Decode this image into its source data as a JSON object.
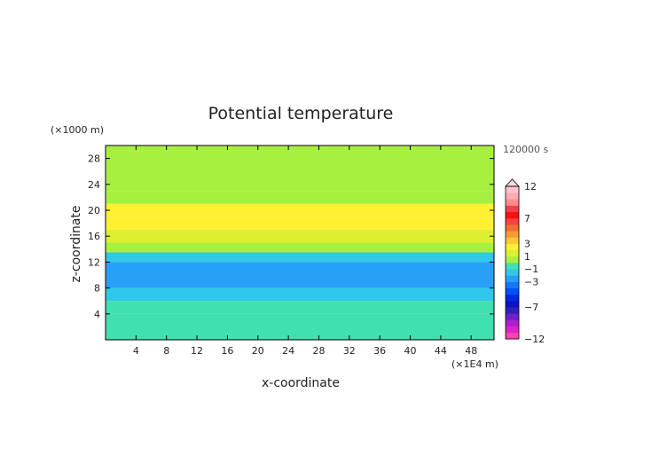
{
  "chart_data": {
    "type": "heatmap",
    "title": "Potential temperature",
    "xlabel": "x-coordinate",
    "ylabel": "z-coordinate",
    "x_unit": "(×1E4 m)",
    "y_unit": "(×1000 m)",
    "time_label": "120000 s",
    "xlim": [
      0,
      51
    ],
    "ylim": [
      0,
      30
    ],
    "x_ticks": [
      4,
      8,
      12,
      16,
      20,
      24,
      28,
      32,
      36,
      40,
      44,
      48
    ],
    "y_ticks": [
      4,
      8,
      12,
      16,
      20,
      24,
      28
    ],
    "x_tick_labels": [
      "4",
      "8",
      "12",
      "16",
      "20",
      "24",
      "28",
      "32",
      "36",
      "40",
      "44",
      "48"
    ],
    "y_tick_labels": [
      "4",
      "8",
      "12",
      "16",
      "20",
      "24",
      "28"
    ],
    "colorbar": {
      "levels": [
        -12,
        -11,
        -10,
        -9,
        -8,
        -7,
        -6,
        -5,
        -4,
        -3,
        -2,
        -1,
        0,
        1,
        2,
        3,
        4,
        5,
        6,
        7,
        8,
        9,
        10,
        11,
        12
      ],
      "labeled": [
        {
          "value": 12,
          "label": "12"
        },
        {
          "value": 7,
          "label": "7"
        },
        {
          "value": 3,
          "label": "3"
        },
        {
          "value": 1,
          "label": "1"
        },
        {
          "value": -1,
          "label": "−1"
        },
        {
          "value": -3,
          "label": "−3"
        },
        {
          "value": -7,
          "label": "−7"
        },
        {
          "value": -12,
          "label": "−12"
        }
      ],
      "colors": [
        "#ff44aa",
        "#e020c8",
        "#b020d0",
        "#7020c8",
        "#3020b8",
        "#1010c8",
        "#0028e0",
        "#0050ff",
        "#1478ff",
        "#28a0f8",
        "#30c8e8",
        "#40e0b0",
        "#a8f040",
        "#dcf030",
        "#fff030",
        "#ffc838",
        "#ff9838",
        "#f07030",
        "#ff4040",
        "#ff1010",
        "#f04050",
        "#ff8c8c",
        "#ffaab4",
        "#ffc4cc"
      ]
    },
    "bands": [
      {
        "z": [
          0,
          4
        ],
        "value": -0.2
      },
      {
        "z": [
          4,
          6
        ],
        "value": -0.8
      },
      {
        "z": [
          6,
          8
        ],
        "value": -1.4
      },
      {
        "z": [
          8,
          10
        ],
        "value": -3.0
      },
      {
        "z": [
          10,
          12
        ],
        "value": -2.6
      },
      {
        "z": [
          12,
          13.5
        ],
        "value": -2.0
      },
      {
        "z": [
          13.5,
          15
        ],
        "value": 0.2
      },
      {
        "z": [
          15,
          17
        ],
        "value": 1.8
      },
      {
        "z": [
          17,
          19
        ],
        "value": 2.6
      },
      {
        "z": [
          19,
          21
        ],
        "value": 2.2
      },
      {
        "z": [
          21,
          23
        ],
        "value": 0.6
      },
      {
        "z": [
          23,
          30
        ],
        "value": 0.1
      }
    ]
  }
}
